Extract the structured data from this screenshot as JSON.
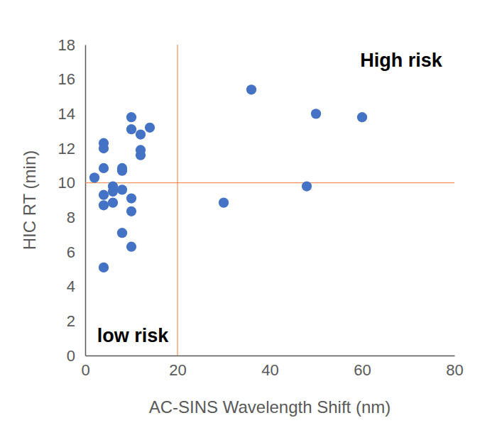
{
  "chart_data": {
    "type": "scatter",
    "x_label": "AC-SINS Wavelength Shift (nm)",
    "y_label": "HIC RT (min)",
    "annotations": [
      "High risk",
      "low risk"
    ],
    "x": [
      2,
      4,
      4,
      4,
      4,
      4,
      4,
      6,
      6,
      6,
      8,
      8,
      8,
      8,
      10,
      10,
      10,
      10,
      10,
      12,
      12,
      12,
      14,
      36,
      30,
      48,
      50,
      60
    ],
    "y": [
      10.3,
      12.3,
      12.0,
      10.85,
      9.3,
      8.7,
      5.1,
      9.8,
      9.5,
      8.85,
      10.85,
      10.7,
      9.6,
      7.1,
      13.8,
      13.1,
      9.1,
      8.35,
      6.3,
      12.8,
      11.9,
      11.6,
      13.2,
      15.4,
      8.85,
      9.8,
      14.0,
      13.8
    ],
    "color": "#4472c4",
    "marker": "circle",
    "reference_lines": {
      "x": 20,
      "y": 10,
      "color": "#ed7d31"
    },
    "xlim": [
      0,
      80
    ],
    "xticks": [
      0,
      20,
      40,
      60,
      80
    ],
    "ylim": [
      0,
      18
    ],
    "yticks": [
      0,
      2,
      4,
      6,
      8,
      10,
      12,
      14,
      16,
      18
    ],
    "grid": false
  }
}
